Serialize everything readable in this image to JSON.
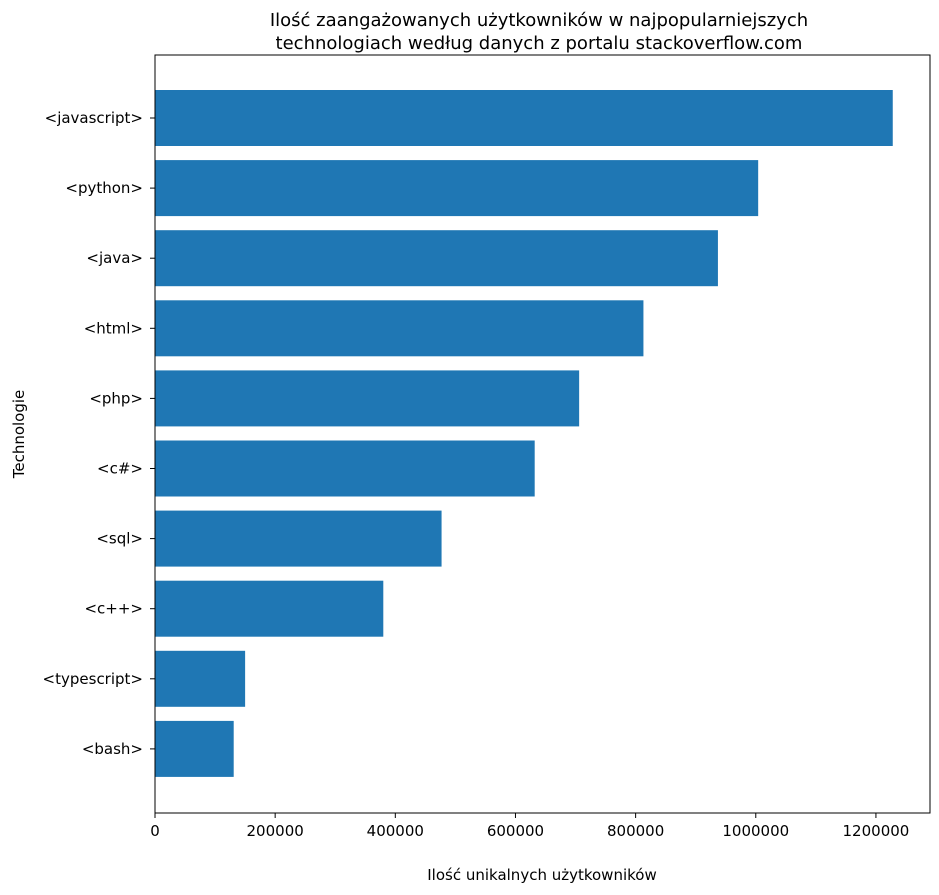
{
  "chart_data": {
    "type": "bar",
    "orientation": "horizontal",
    "title": "Ilość zaangażowanych użytkowników w najpopularniejszych technologiach według danych z portalu stackoverflow.com",
    "title_lines": [
      "Ilość zaangażowanych użytkowników w najpopularniejszych",
      "technologiach według danych z portalu stackoverflow.com"
    ],
    "xlabel": "Ilość unikalnych użytkowników",
    "ylabel": "Technologie",
    "categories": [
      "<javascript>",
      "<python>",
      "<java>",
      "<html>",
      "<php>",
      "<c#>",
      "<sql>",
      "<c++>",
      "<typescript>",
      "<bash>"
    ],
    "values": [
      1228000,
      1004000,
      937000,
      813000,
      706000,
      632000,
      477000,
      380000,
      150000,
      131000
    ],
    "xlim": [
      0,
      1290000
    ],
    "xticks": [
      0,
      200000,
      400000,
      600000,
      800000,
      1000000,
      1200000
    ],
    "xtick_labels": [
      "0",
      "200000",
      "400000",
      "600000",
      "800000",
      "1000000",
      "1200000"
    ],
    "bar_color": "#1f77b4",
    "grid": false,
    "legend": "none"
  }
}
